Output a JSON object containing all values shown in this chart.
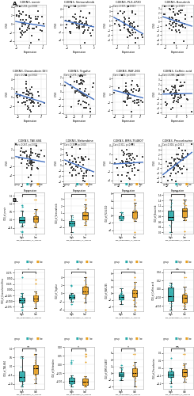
{
  "panel_A": {
    "plots": [
      {
        "title": "CDKN3, norvir",
        "cor": "Cor=-0.208, p=0.008"
      },
      {
        "title": "CDKN3, Vemurafenib",
        "cor": "Cor=-0.320, p=0.013"
      },
      {
        "title": "CDKN3, PLX-4720",
        "cor": "Cor=-0.317, p=0.013"
      },
      {
        "title": "CDKN3, Bosutinib",
        "cor": "Cor=-0.303, p=0.019"
      },
      {
        "title": "CDKN3, Doxorubicin Dfil",
        "cor": "Cor=-0.297, p=0.021"
      },
      {
        "title": "CDKN3, Tegafur",
        "cor": "Cor=-0.273, p=0.000"
      },
      {
        "title": "CDKN3, RAF-265",
        "cor": "Cor=-0.272, p=0.035"
      },
      {
        "title": "CDKN3, Caffeic acid",
        "cor": "Cor=-0.268, p=0.006"
      },
      {
        "title": "CDKN3, TAE-684",
        "cor": "Cor=-0.267, p=0.000"
      },
      {
        "title": "CDKN3, Nelarabine",
        "cor": "Cor=-0.300, p=0.000"
      },
      {
        "title": "CDKN3, BMS-754807",
        "cor": "Cor=0.311, p=0.015"
      },
      {
        "title": "CDKN3, Procarbazine",
        "cor": "Cor=0.318, p=0.013"
      }
    ]
  },
  "panel_B": {
    "plots": [
      {
        "ylabel": "IC50_of_norvir",
        "xlabel": "The_expression_of_CDKN3",
        "sig": "*"
      },
      {
        "ylabel": "IC50_of_Vemurafenib",
        "xlabel": "The_expression_of_CDKN3",
        "sig": "*"
      },
      {
        "ylabel": "IC50_of_PLX-4720",
        "xlabel": "The_expression_of_CDKN3",
        "sig": "**"
      },
      {
        "ylabel": "IC50_of_Bosutinib",
        "xlabel": "The_expression_of_CDKN3",
        "sig": "**"
      },
      {
        "ylabel": "IC50_of_Doxorubicin.Dfmo",
        "xlabel": "The_expression_of_CDKN3",
        "sig": "*"
      },
      {
        "ylabel": "IC50_of_Tegafur",
        "xlabel": "The_expression_of_CDKN3",
        "sig": "**"
      },
      {
        "ylabel": "IC50_of_RAF-265",
        "xlabel": "The_expression_of_CDKN3",
        "sig": "**"
      },
      {
        "ylabel": "IC50_of_Caffeic.acid",
        "xlabel": "The_expression_of_CDKN3",
        "sig": "ns"
      },
      {
        "ylabel": "IC50_of_TAE-684",
        "xlabel": "The_expression_of_CDKN3",
        "sig": "**"
      },
      {
        "ylabel": "IC50_of_Nelarabine",
        "xlabel": "The_expression_of_CDKN3",
        "sig": "*"
      },
      {
        "ylabel": "IC50_of_BMS-754807",
        "xlabel": "The_expression_of_CDKN3",
        "sig": "*"
      },
      {
        "ylabel": "IC50_of_Procarbazine",
        "xlabel": "The_expression_of_CDKN3",
        "sig": "ns"
      }
    ],
    "group_high_color": "#2aabab",
    "group_low_color": "#e8a020",
    "group_labels": [
      "high",
      "low"
    ]
  },
  "bg_color": "#ffffff",
  "scatter_color": "#333333",
  "line_color": "#4472c4",
  "grid_color": "#e0e0e0",
  "spine_color": "#aaaaaa"
}
